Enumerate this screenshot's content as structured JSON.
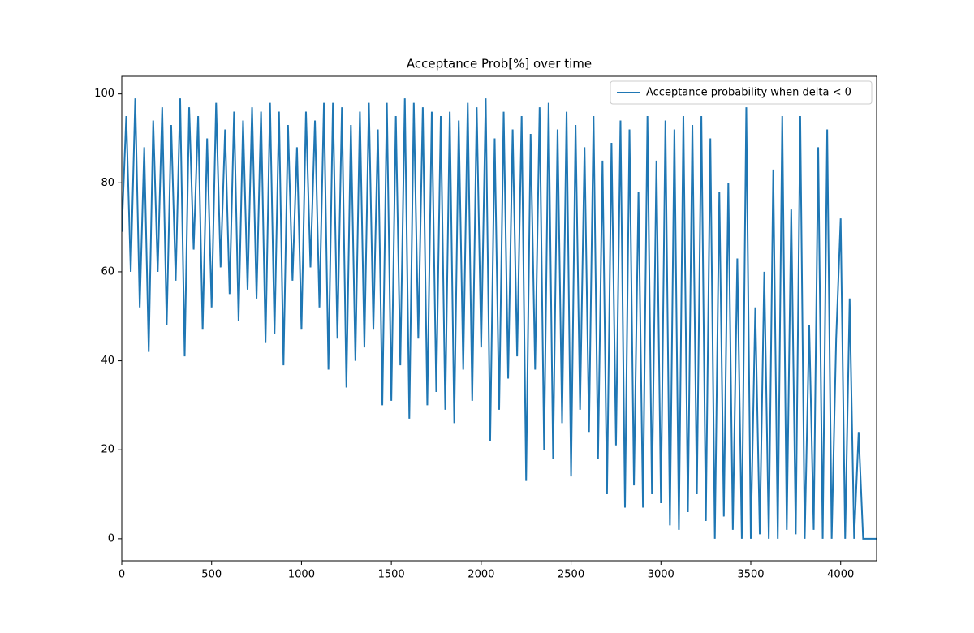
{
  "chart_data": {
    "type": "line",
    "title": "Acceptance Prob[%] over time",
    "x": [
      0,
      25,
      50,
      75,
      100,
      125,
      150,
      175,
      200,
      225,
      250,
      275,
      300,
      325,
      350,
      375,
      400,
      425,
      450,
      475,
      500,
      525,
      550,
      575,
      600,
      625,
      650,
      675,
      700,
      725,
      750,
      775,
      800,
      825,
      850,
      875,
      900,
      925,
      950,
      975,
      1000,
      1025,
      1050,
      1075,
      1100,
      1125,
      1150,
      1175,
      1200,
      1225,
      1250,
      1275,
      1300,
      1325,
      1350,
      1375,
      1400,
      1425,
      1450,
      1475,
      1500,
      1525,
      1550,
      1575,
      1600,
      1625,
      1650,
      1675,
      1700,
      1725,
      1750,
      1775,
      1800,
      1825,
      1850,
      1875,
      1900,
      1925,
      1950,
      1975,
      2000,
      2025,
      2050,
      2075,
      2100,
      2125,
      2150,
      2175,
      2200,
      2225,
      2250,
      2275,
      2300,
      2325,
      2350,
      2375,
      2400,
      2425,
      2450,
      2475,
      2500,
      2525,
      2550,
      2575,
      2600,
      2625,
      2650,
      2675,
      2700,
      2725,
      2750,
      2775,
      2800,
      2825,
      2850,
      2875,
      2900,
      2925,
      2950,
      2975,
      3000,
      3025,
      3050,
      3075,
      3100,
      3125,
      3150,
      3175,
      3200,
      3225,
      3250,
      3275,
      3300,
      3325,
      3350,
      3375,
      3400,
      3425,
      3450,
      3475,
      3500,
      3525,
      3550,
      3575,
      3600,
      3625,
      3650,
      3675,
      3700,
      3725,
      3750,
      3775,
      3800,
      3825,
      3850,
      3875,
      3900,
      3925,
      3950,
      3975,
      4000,
      4025,
      4050,
      4075,
      4100,
      4125,
      4150,
      4175,
      4200
    ],
    "series": [
      {
        "name": "Acceptance probability when delta < 0",
        "color": "#1f77b4",
        "values": [
          69,
          95,
          60,
          99,
          52,
          88,
          42,
          94,
          60,
          97,
          48,
          93,
          58,
          99,
          41,
          97,
          65,
          95,
          47,
          90,
          52,
          98,
          61,
          92,
          55,
          96,
          49,
          94,
          56,
          97,
          54,
          96,
          44,
          98,
          46,
          96,
          39,
          93,
          58,
          88,
          47,
          96,
          61,
          94,
          52,
          98,
          38,
          98,
          45,
          97,
          34,
          93,
          40,
          96,
          43,
          98,
          47,
          92,
          30,
          98,
          31,
          95,
          39,
          99,
          27,
          98,
          45,
          97,
          30,
          96,
          33,
          95,
          29,
          96,
          26,
          94,
          38,
          98,
          31,
          97,
          43,
          99,
          22,
          90,
          29,
          96,
          36,
          92,
          41,
          95,
          13,
          91,
          38,
          97,
          20,
          98,
          18,
          92,
          26,
          96,
          14,
          93,
          29,
          88,
          24,
          95,
          18,
          85,
          10,
          89,
          21,
          94,
          7,
          92,
          12,
          78,
          7,
          95,
          10,
          85,
          8,
          94,
          3,
          92,
          2,
          95,
          6,
          93,
          10,
          95,
          4,
          90,
          0,
          78,
          5,
          80,
          2,
          63,
          0,
          97,
          0,
          52,
          1,
          60,
          0,
          83,
          0,
          95,
          2,
          74,
          1,
          95,
          0,
          48,
          2,
          88,
          0,
          92,
          0,
          45,
          72,
          0,
          54,
          0,
          24,
          0,
          0,
          0,
          0
        ]
      }
    ],
    "xlim": [
      0,
      4200
    ],
    "ylim": [
      -4.95,
      103.95
    ],
    "xticks": [
      0,
      500,
      1000,
      1500,
      2000,
      2500,
      3000,
      3500,
      4000
    ],
    "yticks": [
      0,
      20,
      40,
      60,
      80,
      100
    ],
    "legend": "upper right"
  }
}
